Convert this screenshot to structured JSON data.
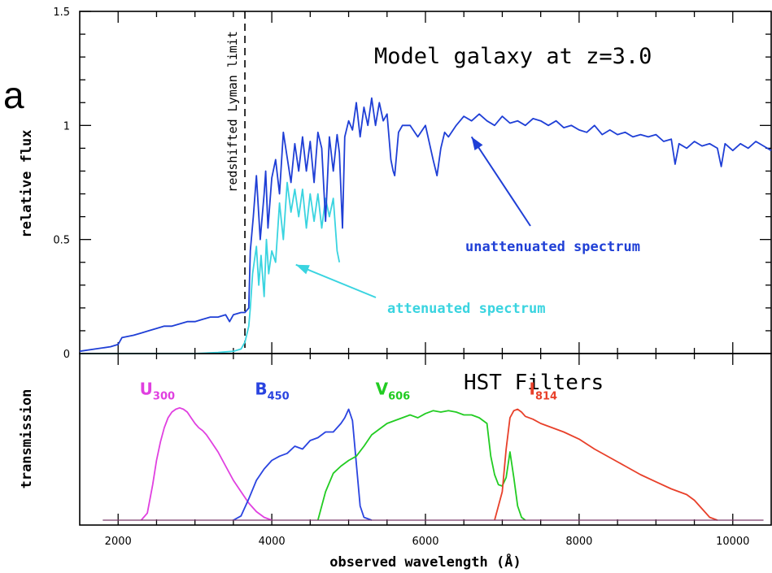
{
  "panel_letter": "a",
  "colors": {
    "unattenuated": "#1f3fd6",
    "attenuated": "#3ad4e0",
    "U300": "#e040e0",
    "B450": "#2a44e0",
    "V606": "#22cc22",
    "I814": "#e8402a"
  },
  "chart_data": [
    {
      "type": "line",
      "title": "Model galaxy at z=3.0",
      "xlabel": "observed wavelength (Å)",
      "ylabel": "relative flux",
      "xlim": [
        1500,
        10500
      ],
      "ylim": [
        0,
        1.5
      ],
      "yticks": [
        "0",
        "0.5",
        "1",
        "1.5"
      ],
      "vline": {
        "x": 3650,
        "label": "redshifted Lyman limit",
        "style": "dashed"
      },
      "annotations": [
        {
          "text": "unattenuated spectrum",
          "series": "unattenuated",
          "arrow_to": [
            6600,
            0.95
          ]
        },
        {
          "text": "attenuated spectrum",
          "series": "attenuated",
          "arrow_to": [
            4250,
            0.4
          ]
        }
      ],
      "series": [
        {
          "id": "unattenuated",
          "x": [
            1500,
            1700,
            1900,
            2000,
            2050,
            2200,
            2300,
            2400,
            2500,
            2600,
            2700,
            2800,
            2900,
            3000,
            3100,
            3200,
            3300,
            3400,
            3450,
            3500,
            3600,
            3650,
            3700,
            3720,
            3760,
            3800,
            3850,
            3900,
            3920,
            3950,
            4000,
            4050,
            4100,
            4150,
            4200,
            4250,
            4300,
            4350,
            4400,
            4450,
            4500,
            4550,
            4600,
            4650,
            4700,
            4750,
            4800,
            4850,
            4880,
            4920,
            4950,
            5000,
            5050,
            5100,
            5150,
            5200,
            5250,
            5300,
            5350,
            5400,
            5450,
            5500,
            5550,
            5580,
            5600,
            5650,
            5700,
            5800,
            5900,
            6000,
            6100,
            6150,
            6200,
            6250,
            6300,
            6400,
            6500,
            6600,
            6700,
            6800,
            6900,
            7000,
            7100,
            7200,
            7300,
            7400,
            7500,
            7600,
            7700,
            7800,
            7900,
            8000,
            8100,
            8200,
            8300,
            8400,
            8500,
            8600,
            8700,
            8800,
            8900,
            9000,
            9100,
            9200,
            9250,
            9300,
            9400,
            9500,
            9600,
            9700,
            9800,
            9850,
            9900,
            10000,
            10100,
            10200,
            10300,
            10400,
            10500
          ],
          "values": [
            0.01,
            0.02,
            0.03,
            0.04,
            0.07,
            0.08,
            0.09,
            0.1,
            0.11,
            0.12,
            0.12,
            0.13,
            0.14,
            0.14,
            0.15,
            0.16,
            0.16,
            0.17,
            0.14,
            0.17,
            0.18,
            0.18,
            0.2,
            0.45,
            0.6,
            0.78,
            0.5,
            0.7,
            0.8,
            0.55,
            0.77,
            0.85,
            0.7,
            0.97,
            0.86,
            0.75,
            0.92,
            0.8,
            0.95,
            0.8,
            0.93,
            0.75,
            0.97,
            0.9,
            0.58,
            0.95,
            0.8,
            0.96,
            0.88,
            0.55,
            0.95,
            1.02,
            0.98,
            1.1,
            0.95,
            1.08,
            1.0,
            1.12,
            1.0,
            1.1,
            1.02,
            1.05,
            0.85,
            0.8,
            0.78,
            0.97,
            1.0,
            1.0,
            0.95,
            1.0,
            0.85,
            0.78,
            0.9,
            0.97,
            0.95,
            1.0,
            1.04,
            1.02,
            1.05,
            1.02,
            1.0,
            1.04,
            1.01,
            1.02,
            1.0,
            1.03,
            1.02,
            1.0,
            1.02,
            0.99,
            1.0,
            0.98,
            0.97,
            1.0,
            0.96,
            0.98,
            0.96,
            0.97,
            0.95,
            0.96,
            0.95,
            0.96,
            0.93,
            0.94,
            0.83,
            0.92,
            0.9,
            0.93,
            0.91,
            0.92,
            0.9,
            0.82,
            0.92,
            0.89,
            0.92,
            0.9,
            0.93,
            0.91,
            0.89
          ]
        },
        {
          "id": "attenuated",
          "x": [
            1500,
            2000,
            2500,
            3000,
            3300,
            3500,
            3600,
            3650,
            3700,
            3720,
            3750,
            3800,
            3830,
            3860,
            3900,
            3930,
            3960,
            4000,
            4050,
            4100,
            4150,
            4200,
            4250,
            4300,
            4350,
            4400,
            4450,
            4500,
            4550,
            4600,
            4650,
            4700,
            4750,
            4800,
            4850,
            4880
          ],
          "values": [
            0.0,
            0.0,
            0.0,
            0.0,
            0.005,
            0.01,
            0.02,
            0.05,
            0.12,
            0.2,
            0.35,
            0.47,
            0.3,
            0.43,
            0.25,
            0.5,
            0.35,
            0.45,
            0.4,
            0.66,
            0.5,
            0.75,
            0.62,
            0.72,
            0.6,
            0.72,
            0.55,
            0.7,
            0.58,
            0.7,
            0.55,
            0.68,
            0.6,
            0.68,
            0.45,
            0.4
          ]
        }
      ]
    },
    {
      "type": "line",
      "title": "HST Filters",
      "xlabel": "observed wavelength (Å)",
      "ylabel": "transmission",
      "xlim": [
        1500,
        10500
      ],
      "ylim": [
        0,
        1
      ],
      "xticks": [
        2000,
        4000,
        6000,
        8000,
        10000
      ],
      "xticklabels": [
        "2000",
        "4000",
        "6000",
        "8000",
        "10000"
      ],
      "series": [
        {
          "id": "U300",
          "label_main": "U",
          "label_sub": "300",
          "label_at": [
            2280,
            0.94
          ],
          "x": [
            2300,
            2380,
            2450,
            2500,
            2550,
            2600,
            2650,
            2700,
            2750,
            2800,
            2850,
            2900,
            2950,
            3000,
            3050,
            3100,
            3150,
            3200,
            3300,
            3400,
            3500,
            3600,
            3700,
            3800,
            3900,
            4000
          ],
          "values": [
            0.0,
            0.05,
            0.25,
            0.42,
            0.55,
            0.65,
            0.72,
            0.76,
            0.78,
            0.79,
            0.78,
            0.76,
            0.72,
            0.68,
            0.65,
            0.63,
            0.6,
            0.56,
            0.48,
            0.38,
            0.28,
            0.2,
            0.12,
            0.06,
            0.02,
            0.0
          ]
        },
        {
          "id": "B450",
          "label_main": "B",
          "label_sub": "450",
          "label_at": [
            3780,
            0.94
          ],
          "x": [
            3500,
            3600,
            3700,
            3800,
            3900,
            4000,
            4100,
            4200,
            4300,
            4400,
            4500,
            4600,
            4700,
            4800,
            4900,
            4950,
            5000,
            5050,
            5100,
            5150,
            5200,
            5300
          ],
          "values": [
            0.0,
            0.03,
            0.15,
            0.28,
            0.36,
            0.42,
            0.45,
            0.47,
            0.52,
            0.5,
            0.56,
            0.58,
            0.62,
            0.62,
            0.68,
            0.72,
            0.78,
            0.7,
            0.4,
            0.1,
            0.02,
            0.0
          ]
        },
        {
          "id": "V606",
          "label_main": "V",
          "label_sub": "606",
          "label_at": [
            5350,
            0.94
          ],
          "x": [
            4600,
            4700,
            4800,
            4900,
            5000,
            5100,
            5200,
            5300,
            5400,
            5500,
            5600,
            5700,
            5800,
            5900,
            6000,
            6100,
            6200,
            6300,
            6400,
            6500,
            6600,
            6700,
            6800,
            6850,
            6900,
            6950,
            7000,
            7050,
            7100,
            7150,
            7200,
            7250,
            7300
          ],
          "values": [
            0.0,
            0.2,
            0.33,
            0.38,
            0.42,
            0.45,
            0.52,
            0.6,
            0.64,
            0.68,
            0.7,
            0.72,
            0.74,
            0.72,
            0.75,
            0.77,
            0.76,
            0.77,
            0.76,
            0.74,
            0.74,
            0.72,
            0.68,
            0.45,
            0.32,
            0.25,
            0.24,
            0.3,
            0.48,
            0.3,
            0.1,
            0.02,
            0.0
          ]
        },
        {
          "id": "I814",
          "label_main": "I",
          "label_sub": "814",
          "label_at": [
            7350,
            0.94
          ],
          "x": [
            6900,
            7000,
            7050,
            7100,
            7150,
            7200,
            7250,
            7300,
            7400,
            7500,
            7600,
            7800,
            8000,
            8200,
            8400,
            8600,
            8800,
            9000,
            9200,
            9400,
            9500,
            9600,
            9700,
            9800
          ],
          "values": [
            0.0,
            0.2,
            0.5,
            0.72,
            0.77,
            0.78,
            0.76,
            0.73,
            0.71,
            0.68,
            0.66,
            0.62,
            0.57,
            0.5,
            0.44,
            0.38,
            0.32,
            0.27,
            0.22,
            0.18,
            0.14,
            0.08,
            0.02,
            0.0
          ]
        }
      ]
    }
  ]
}
